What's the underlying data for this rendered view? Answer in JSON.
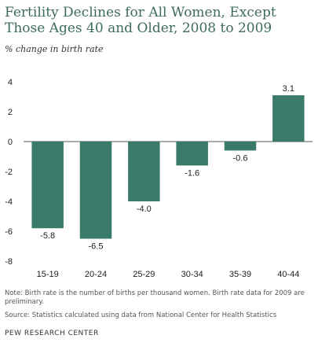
{
  "chart_data": {
    "type": "bar",
    "title": "Fertility Declines for All Women, Except Those Ages 40 and Older, 2008 to 2009",
    "subtitle": "% change in birth rate",
    "xlabel": "",
    "ylabel": "",
    "categories": [
      "15-19",
      "20-24",
      "25-29",
      "30-34",
      "35-39",
      "40-44"
    ],
    "values": [
      -5.8,
      -6.5,
      -4.0,
      -1.6,
      -0.6,
      3.1
    ],
    "value_labels": [
      "-5.8",
      "-6.5",
      "-4.0",
      "-1.6",
      "-0.6",
      "3.1"
    ],
    "ylim": [
      -8,
      4
    ],
    "yticks": [
      4,
      2,
      0,
      -2,
      -4,
      -6,
      -8
    ],
    "grid": false,
    "bar_color": "#3a7a6a"
  },
  "notes": {
    "note": "Note: Birth rate is the number of births per thousand women. Birth rate data for 2009 are preliminary.",
    "source": "Source: Statistics calculated using data from National Center for Health Statistics"
  },
  "source_org": "PEW RESEARCH CENTER"
}
